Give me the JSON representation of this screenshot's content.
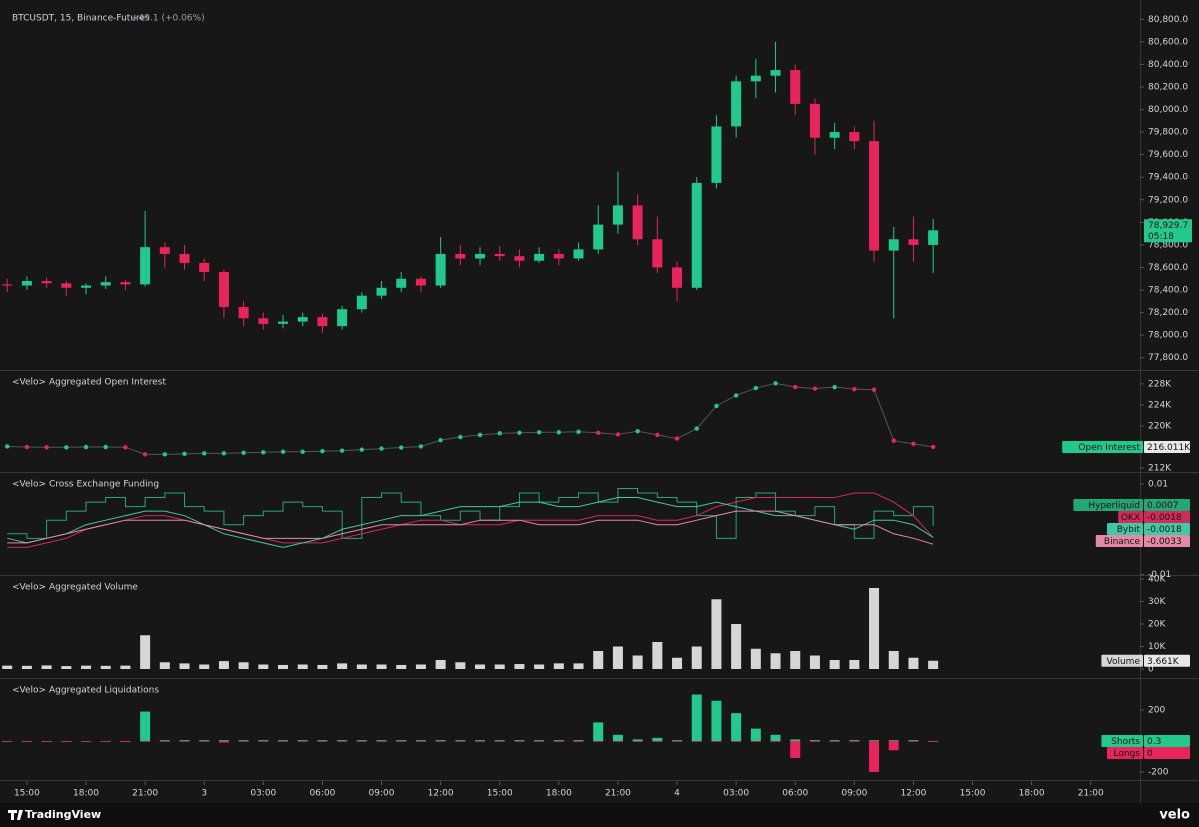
{
  "chart_data": [
    {
      "type": "candlestick",
      "title": "BTCUSDT, 15, Binance-Futures",
      "change_label": "+49.1 (+0.06%)",
      "x": [
        -1,
        0,
        1,
        2,
        3,
        4,
        5,
        6,
        7,
        8,
        9,
        10,
        11,
        12,
        13,
        14,
        15,
        16,
        17,
        18,
        19,
        20,
        21,
        22,
        23,
        24,
        25,
        26,
        27,
        28,
        29,
        30,
        31,
        32,
        33,
        34,
        35,
        36,
        37,
        38,
        39,
        40,
        41,
        42,
        43,
        44,
        45,
        46
      ],
      "open": [
        78450,
        78440,
        78480,
        78460,
        78420,
        78440,
        78470,
        78450,
        78780,
        78720,
        78640,
        78560,
        78250,
        78150,
        78100,
        78120,
        78160,
        78080,
        78230,
        78350,
        78420,
        78500,
        78440,
        78720,
        78680,
        78720,
        78700,
        78660,
        78720,
        78680,
        78760,
        78980,
        79150,
        78850,
        78600,
        78420,
        79350,
        79850,
        80250,
        80300,
        80350,
        80050,
        79750,
        79800,
        79720,
        78750,
        78850,
        78800
      ],
      "high": [
        78500,
        78520,
        78510,
        78480,
        78460,
        78520,
        78490,
        79100,
        78820,
        78800,
        78680,
        78580,
        78300,
        78200,
        78180,
        78200,
        78190,
        78260,
        78380,
        78480,
        78560,
        78520,
        78870,
        78800,
        78780,
        78790,
        78760,
        78780,
        78760,
        78820,
        79150,
        79450,
        79250,
        79050,
        78650,
        79400,
        79950,
        80300,
        80450,
        80600,
        80400,
        80100,
        79880,
        79850,
        79900,
        78960,
        79050,
        79030
      ],
      "low": [
        78380,
        78400,
        78420,
        78350,
        78360,
        78410,
        78400,
        78430,
        78600,
        78580,
        78480,
        78150,
        78080,
        78050,
        78060,
        78080,
        78020,
        78050,
        78200,
        78320,
        78380,
        78380,
        78420,
        78620,
        78620,
        78660,
        78600,
        78640,
        78620,
        78660,
        78720,
        78900,
        78800,
        78550,
        78300,
        78400,
        79300,
        79750,
        80100,
        80150,
        79950,
        79600,
        79650,
        79650,
        78650,
        78150,
        78650,
        78550
      ],
      "close": [
        78440,
        78480,
        78460,
        78420,
        78440,
        78470,
        78450,
        78780,
        78720,
        78640,
        78560,
        78250,
        78150,
        78100,
        78120,
        78160,
        78080,
        78230,
        78350,
        78420,
        78500,
        78440,
        78720,
        78680,
        78720,
        78700,
        78660,
        78720,
        78680,
        78760,
        78980,
        79150,
        78850,
        78600,
        78420,
        79350,
        79850,
        80250,
        80300,
        80350,
        80050,
        79750,
        79800,
        79720,
        78750,
        78850,
        78800,
        78929.7
      ],
      "up_color": "#22c98d",
      "down_color": "#e8245a",
      "last_value_label": "78,929.7",
      "countdown": "05:18",
      "xlim": [
        -0.96,
        56.5
      ],
      "xticks": [
        {
          "value": 0,
          "label": "15:00"
        },
        {
          "value": 3,
          "label": "18:00"
        },
        {
          "value": 6,
          "label": "21:00"
        },
        {
          "value": 9,
          "label": "3"
        },
        {
          "value": 12,
          "label": "03:00"
        },
        {
          "value": 15,
          "label": "06:00"
        },
        {
          "value": 18,
          "label": "09:00"
        },
        {
          "value": 21,
          "label": "12:00"
        },
        {
          "value": 24,
          "label": "15:00"
        },
        {
          "value": 27,
          "label": "18:00"
        },
        {
          "value": 30,
          "label": "21:00"
        },
        {
          "value": 33,
          "label": "4"
        },
        {
          "value": 36,
          "label": "03:00"
        },
        {
          "value": 39,
          "label": "06:00"
        },
        {
          "value": 42,
          "label": "09:00"
        },
        {
          "value": 45,
          "label": "12:00"
        },
        {
          "value": 48,
          "label": "15:00"
        },
        {
          "value": 51,
          "label": "18:00"
        },
        {
          "value": 54,
          "label": "21:00"
        }
      ],
      "ylim": [
        77700,
        80900
      ],
      "yticks": [
        {
          "value": 77800,
          "label": "77,800.0"
        },
        {
          "value": 78000,
          "label": "78,000.0"
        },
        {
          "value": 78200,
          "label": "78,200.0"
        },
        {
          "value": 78400,
          "label": "78,400.0"
        },
        {
          "value": 78600,
          "label": "78,600.0"
        },
        {
          "value": 78800,
          "label": "78,800.0"
        },
        {
          "value": 79000,
          "label": "79,000.0"
        },
        {
          "value": 79200,
          "label": "79,200.0"
        },
        {
          "value": 79400,
          "label": "79,400.0"
        },
        {
          "value": 79600,
          "label": "79,600.0"
        },
        {
          "value": 79800,
          "label": "79,800.0"
        },
        {
          "value": 80000,
          "label": "80,000.0"
        },
        {
          "value": 80200,
          "label": "80,200.0"
        },
        {
          "value": 80400,
          "label": "80,400.0"
        },
        {
          "value": 80600,
          "label": "80,600.0"
        },
        {
          "value": 80800,
          "label": "80,800.0"
        }
      ],
      "grid": false
    },
    {
      "type": "line",
      "title": "<Velo> Aggregated Open Interest",
      "markers": true,
      "series": [
        {
          "name": "Open Interest",
          "color": "#22c98d",
          "down_color": "#e8245a",
          "values": [
            216100,
            216000,
            215950,
            215950,
            216000,
            216000,
            215950,
            214600,
            214600,
            214700,
            214800,
            214800,
            214900,
            215000,
            215100,
            215100,
            215200,
            215300,
            215500,
            215700,
            215900,
            216100,
            217300,
            217900,
            218300,
            218600,
            218700,
            218800,
            218800,
            218900,
            218700,
            218400,
            219000,
            218300,
            217600,
            219500,
            223800,
            225800,
            227200,
            228100,
            227400,
            227100,
            227400,
            227000,
            226900,
            217200,
            216600,
            216011
          ]
        }
      ],
      "last_value_label": "216.011K",
      "ylim": [
        211440,
        230260
      ],
      "yticks": [
        {
          "value": 212000,
          "label": "212K"
        },
        {
          "value": 216000,
          "label": "216K"
        },
        {
          "value": 220000,
          "label": "220K"
        },
        {
          "value": 224000,
          "label": "224K"
        },
        {
          "value": 228000,
          "label": "228K"
        }
      ],
      "grid": false
    },
    {
      "type": "line",
      "title": "<Velo> Cross Exchange Funding",
      "markers": false,
      "series": [
        {
          "name": "Hyperliquid",
          "color": "#22a878",
          "step": true,
          "values": [
            -0.001,
            -0.002,
            0.002,
            0.004,
            0.006,
            0.007,
            0.005,
            0.007,
            0.008,
            0.005,
            0.004,
            0.001,
            0.003,
            0.004,
            0.006,
            0.005,
            0.004,
            -0.002,
            0.007,
            0.008,
            0.006,
            0.003,
            0.002,
            0.004,
            0.002,
            0.005,
            0.008,
            0.006,
            0.007,
            0.008,
            0.006,
            0.009,
            0.008,
            0.007,
            0.006,
            0.003,
            -0.002,
            0.007,
            0.008,
            0.004,
            0.003,
            0.005,
            0.001,
            -0.002,
            0.004,
            0.003,
            0.005,
            0.0007
          ]
        },
        {
          "name": "OKX",
          "color": "#d42a5a",
          "values": [
            -0.004,
            -0.004,
            -0.003,
            -0.002,
            0,
            0.001,
            0.002,
            0.003,
            0.003,
            0.002,
            0.001,
            0,
            -0.001,
            -0.002,
            -0.003,
            -0.003,
            -0.003,
            -0.002,
            -0.001,
            0,
            0.001,
            0.002,
            0.002,
            0.001,
            0.001,
            0.001,
            0.002,
            0.002,
            0.002,
            0.002,
            0.003,
            0.003,
            0.003,
            0.002,
            0.002,
            0.003,
            0.005,
            0.006,
            0.007,
            0.007,
            0.007,
            0.007,
            0.007,
            0.008,
            0.008,
            0.006,
            0.003,
            -0.0018
          ]
        },
        {
          "name": "Bybit",
          "color": "#3fc9a4",
          "values": [
            -0.002,
            -0.003,
            -0.002,
            -0.001,
            0.001,
            0.002,
            0.003,
            0.004,
            0.004,
            0.003,
            0.001,
            -0.001,
            -0.002,
            -0.003,
            -0.004,
            -0.003,
            -0.002,
            0,
            0.001,
            0.002,
            0.003,
            0.003,
            0.004,
            0.005,
            0.005,
            0.005,
            0.006,
            0.006,
            0.005,
            0.005,
            0.006,
            0.007,
            0.007,
            0.006,
            0.005,
            0.005,
            0.006,
            0.005,
            0.004,
            0.003,
            0.003,
            0.002,
            0.001,
            0,
            0.002,
            0.002,
            0.001,
            -0.0018
          ]
        },
        {
          "name": "Binance",
          "color": "#e58aa6",
          "values": [
            -0.003,
            -0.003,
            -0.002,
            -0.001,
            0,
            0.001,
            0.002,
            0.002,
            0.002,
            0.002,
            0.001,
            0,
            -0.001,
            -0.002,
            -0.002,
            -0.002,
            -0.002,
            -0.001,
            0,
            0.001,
            0.001,
            0.001,
            0.001,
            0.001,
            0.002,
            0.002,
            0.002,
            0.001,
            0.001,
            0.001,
            0.002,
            0.002,
            0.002,
            0.001,
            0.001,
            0.002,
            0.003,
            0.004,
            0.004,
            0.004,
            0.003,
            0.002,
            0.001,
            0.001,
            0.001,
            -0.001,
            -0.002,
            -0.0033
          ]
        }
      ],
      "ylim": [
        -0.0101,
        0.0122
      ],
      "yticks": [
        -0.01,
        0.01
      ],
      "grid": false
    },
    {
      "type": "bar",
      "title": "<Velo> Aggregated Volume",
      "series": [
        {
          "name": "Volume",
          "color": "#d6d6d6",
          "values": [
            1500,
            1400,
            1600,
            1300,
            1500,
            1400,
            1500,
            15000,
            3000,
            2500,
            2000,
            3500,
            3000,
            2000,
            1800,
            2000,
            1800,
            2500,
            2000,
            2000,
            1800,
            2000,
            4000,
            3000,
            2000,
            2000,
            2200,
            2000,
            2500,
            2500,
            8000,
            10000,
            6000,
            12000,
            5000,
            10000,
            31000,
            20000,
            9000,
            7000,
            8000,
            6000,
            4000,
            4000,
            36000,
            8000,
            5000,
            3661
          ]
        }
      ],
      "last_value_label": "3.661K",
      "ylim": [
        -4000,
        40900
      ],
      "yticks": [
        0,
        {
          "value": 10000,
          "label": "10K"
        },
        {
          "value": 20000,
          "label": "20K"
        },
        {
          "value": 30000,
          "label": "30K"
        },
        {
          "value": 40000,
          "label": "40K"
        }
      ],
      "grid": false
    },
    {
      "type": "bar",
      "title": "<Velo> Aggregated Liquidations",
      "series": [
        {
          "name": "Shorts",
          "color": "#22c98d",
          "values": [
            0,
            0,
            0,
            0,
            0,
            0,
            0,
            190,
            5,
            5,
            5,
            5,
            5,
            5,
            5,
            5,
            5,
            5,
            5,
            5,
            5,
            5,
            5,
            5,
            5,
            5,
            5,
            5,
            5,
            5,
            120,
            40,
            10,
            20,
            5,
            300,
            260,
            180,
            80,
            40,
            10,
            5,
            5,
            5,
            5,
            5,
            5,
            0.3
          ]
        },
        {
          "name": "Longs",
          "color": "#e8245a",
          "values": [
            -3,
            -3,
            -3,
            -3,
            -3,
            -3,
            -3,
            -5,
            -5,
            -5,
            -5,
            -10,
            -5,
            -5,
            -5,
            -5,
            -5,
            -5,
            -5,
            -5,
            -5,
            -5,
            -5,
            -5,
            -5,
            -5,
            -5,
            -5,
            -5,
            -5,
            -5,
            -5,
            -5,
            -5,
            -5,
            -5,
            -5,
            -5,
            -5,
            -5,
            -110,
            -5,
            -5,
            -5,
            -200,
            -60,
            -5,
            0
          ]
        }
      ],
      "ylim": [
        -252,
        394
      ],
      "yticks": [
        -200,
        200
      ],
      "grid": false
    }
  ],
  "branding": {
    "left": "TradingView",
    "right": "velo"
  }
}
